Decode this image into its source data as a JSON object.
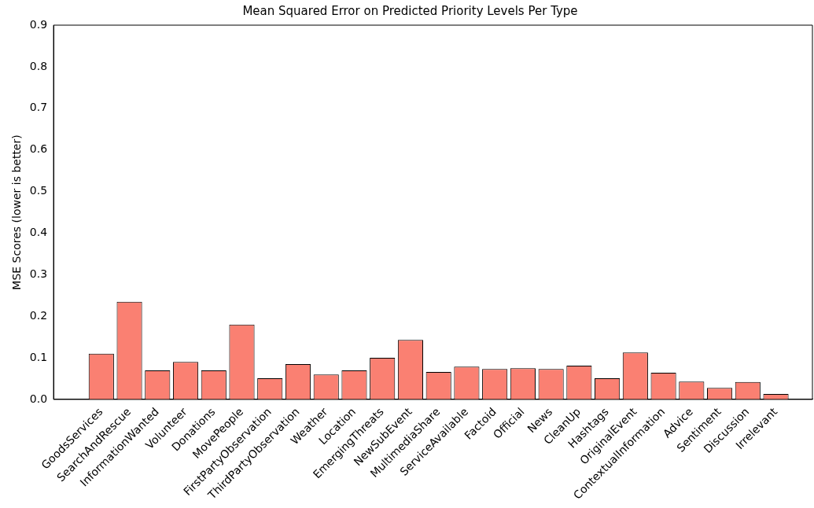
{
  "chart_data": {
    "type": "bar",
    "title": "Mean Squared Error on Predicted Priority Levels Per Type",
    "ylabel": "MSE Scores (lower is better)",
    "categories": [
      "GoodsServices",
      "SearchAndRescue",
      "InformationWanted",
      "Volunteer",
      "Donations",
      "MovePeople",
      "FirstPartyObservation",
      "ThirdPartyObservation",
      "Weather",
      "Location",
      "EmergingThreats",
      "NewSubEvent",
      "MultimediaShare",
      "ServiceAvailable",
      "Factoid",
      "Official",
      "News",
      "CleanUp",
      "Hashtags",
      "OriginalEvent",
      "ContextualInformation",
      "Advice",
      "Sentiment",
      "Discussion",
      "Irrelevant"
    ],
    "values": [
      0.11,
      0.235,
      0.07,
      0.09,
      0.07,
      0.18,
      0.051,
      0.085,
      0.06,
      0.07,
      0.1,
      0.143,
      0.066,
      0.079,
      0.073,
      0.075,
      0.073,
      0.081,
      0.051,
      0.113,
      0.064,
      0.043,
      0.028,
      0.042,
      0.013
    ],
    "color": "#fa8072",
    "ylim": [
      0,
      0.9
    ],
    "yticks": [
      {
        "value": 0,
        "label": "0.0"
      },
      {
        "value": 0.1,
        "label": "0.1"
      },
      {
        "value": 0.2,
        "label": "0.2"
      },
      {
        "value": 0.3,
        "label": "0.3"
      },
      {
        "value": 0.4,
        "label": "0.4"
      },
      {
        "value": 0.5,
        "label": "0.5"
      },
      {
        "value": 0.6,
        "label": "0.6"
      },
      {
        "value": 0.7,
        "label": "0.7"
      },
      {
        "value": 0.8,
        "label": "0.8"
      },
      {
        "value": 0.9,
        "label": "0.9"
      }
    ],
    "grid": false,
    "legend": false
  }
}
